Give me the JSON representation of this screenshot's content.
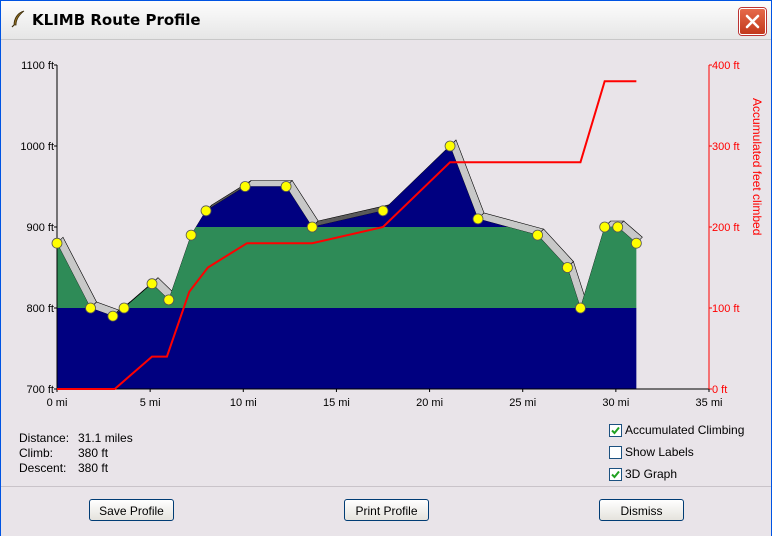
{
  "window": {
    "title": "KLIMB Route Profile"
  },
  "chart_data": {
    "type": "area",
    "x_unit": "mi",
    "xlim": [
      0,
      35
    ],
    "x_ticks": [
      "0 mi",
      "5 mi",
      "10 mi",
      "15 mi",
      "20 mi",
      "25 mi",
      "30 mi",
      "35 mi"
    ],
    "ylim_left": [
      700,
      1100
    ],
    "y_ticks_left": [
      "700 ft",
      "800 ft",
      "900 ft",
      "1000 ft",
      "1100 ft"
    ],
    "ylim_right": [
      0,
      400
    ],
    "y_ticks_right": [
      "0 ft",
      "100 ft",
      "200 ft",
      "300 ft",
      "400 ft"
    ],
    "ylabel_right": "Accumulated feet climbed",
    "bands": [
      {
        "from": 700,
        "to": 800,
        "color": "#000080"
      },
      {
        "from": 800,
        "to": 900,
        "color": "#2e8b57"
      },
      {
        "from": 900,
        "to": 1100,
        "color": "#000080"
      }
    ],
    "series": [
      {
        "kind": "elevation",
        "x": [
          0,
          1.8,
          3.0,
          3.6,
          5.1,
          6.0,
          7.2,
          8.0,
          10.1,
          12.3,
          13.7,
          17.5,
          21.1,
          22.6,
          25.8,
          27.4,
          28.1,
          29.4,
          30.1,
          31.1
        ],
        "y": [
          880,
          800,
          790,
          800,
          830,
          810,
          890,
          920,
          950,
          950,
          900,
          920,
          1000,
          910,
          890,
          850,
          800,
          900,
          900,
          880
        ],
        "marker_color": "#ffff00"
      },
      {
        "kind": "accumulated",
        "x": [
          0,
          3.1,
          5.1,
          5.9,
          7.1,
          8.1,
          10.2,
          13.7,
          17.5,
          21.1,
          28.1,
          29.4,
          31.1
        ],
        "y": [
          0,
          0,
          40,
          40,
          120,
          150,
          180,
          180,
          200,
          280,
          280,
          380,
          380
        ],
        "color": "#ff0000"
      }
    ]
  },
  "stats": [
    {
      "label": "Distance:",
      "value": "31.1 miles"
    },
    {
      "label": "Climb:",
      "value": "380 ft"
    },
    {
      "label": "Descent:",
      "value": "380 ft"
    }
  ],
  "options": [
    {
      "label": "Accumulated Climbing",
      "checked": true
    },
    {
      "label": "Show Labels",
      "checked": false
    },
    {
      "label": "3D Graph",
      "checked": true
    }
  ],
  "buttons": {
    "save": "Save Profile",
    "print": "Print Profile",
    "dismiss": "Dismiss"
  }
}
